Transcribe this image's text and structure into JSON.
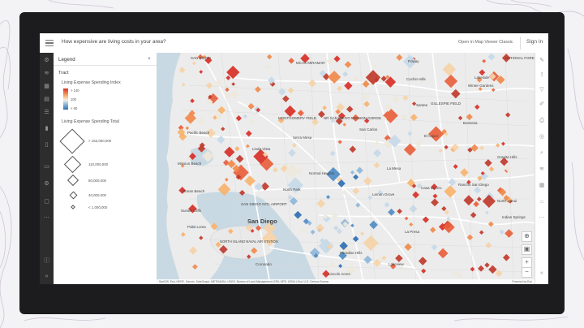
{
  "header": {
    "title": "How expensive are living costs in your area?",
    "open_map_viewer": "Open in Map Viewer Classic",
    "sign_in": "Sign In"
  },
  "legend": {
    "title": "Legend",
    "layer": "Tract",
    "field_index": "Living Expense Spending Index",
    "index_labels": {
      "high": "> 140",
      "mid": "100",
      "low": "< 60"
    },
    "field_total": "Living Expense Spending Total",
    "size_labels": [
      "> 153,000,000",
      "110,000,000",
      "80,000,000",
      "40,000,000",
      "< 1,000,000"
    ]
  },
  "colors": {
    "high": "#d73027",
    "mid": "#f3efe6",
    "low": "#2e6fb1"
  },
  "left_toolbar_icons": [
    "gear-icon",
    "layers-icon",
    "basemap-icon",
    "table-icon",
    "list-icon",
    "chart-icon",
    "bookmark-icon",
    "folder-icon",
    "settings-icon",
    "share-icon",
    "more-icon",
    "info-icon",
    "expand-icon"
  ],
  "right_toolbar_icons": [
    "sketch-icon",
    "measure-icon",
    "filter-icon",
    "edit-icon",
    "print-icon",
    "locate-icon",
    "search-icon",
    "layers-icon",
    "basemap-icon",
    "home-icon"
  ],
  "map": {
    "places": {
      "san_diego_top": "SAN DIEGO",
      "mcas": "MCAS MIRAMAR",
      "poway": "Poway",
      "cochin": "Cochin Hills",
      "national_forest": "NATIONAL FORE",
      "lakeside": "Lakeside",
      "winter_gardens": "Winter Gardens",
      "gillespie": "GILLESPIE FIELD",
      "montgomery": "MONTGOMERY FIELD",
      "mission_gorge": "NR SAN DIEGO MISSION GORGE",
      "santee": "Santee",
      "pacific_beach": "Pacific Beach",
      "serra_mesa": "Serra Mesa",
      "san_carlos": "San Carlos",
      "el_cajon": "El Cajon",
      "bostonia": "Bostonia",
      "linda_vista": "Linda Vista",
      "mission_beach": "Mission Beach",
      "granite_hills": "Granite Hills",
      "normal_heights": "Normal Heights",
      "la_mesa": "La Mesa",
      "ocean_beach": "Ocean Beach",
      "north_park": "North Park",
      "lemon_grove": "Lemon Grove",
      "casa_de_oro": "Casa de Oro",
      "rancho_san_diego": "Rancho San Diego",
      "nr_airport": "SAN DIEGO INTL AIRPORT",
      "sunset_cliffs": "Sunset Cliffs",
      "san_diego": "San Diego",
      "jamul": "North Jamul",
      "indian_springs": "Indian Springs",
      "point_loma": "Point Loma",
      "north_island": "NORTH ISLAND NAVAL AIR STATION",
      "la_presa": "La Presa",
      "coronado": "Coronado",
      "paradise_hills": "Paradise Hills",
      "lincoln_acres": "Lincoln Acres",
      "lemon_grove_2": "Lakeview"
    },
    "attribution": "SanGIS, Esri, HERE, Garmin, SafeGraph, METI/NASA, USGS, Bureau of Land Management, EPA, NPS, USDA | Esri, U.S. Census Bureau",
    "powered_by": "Powered by Esri"
  }
}
